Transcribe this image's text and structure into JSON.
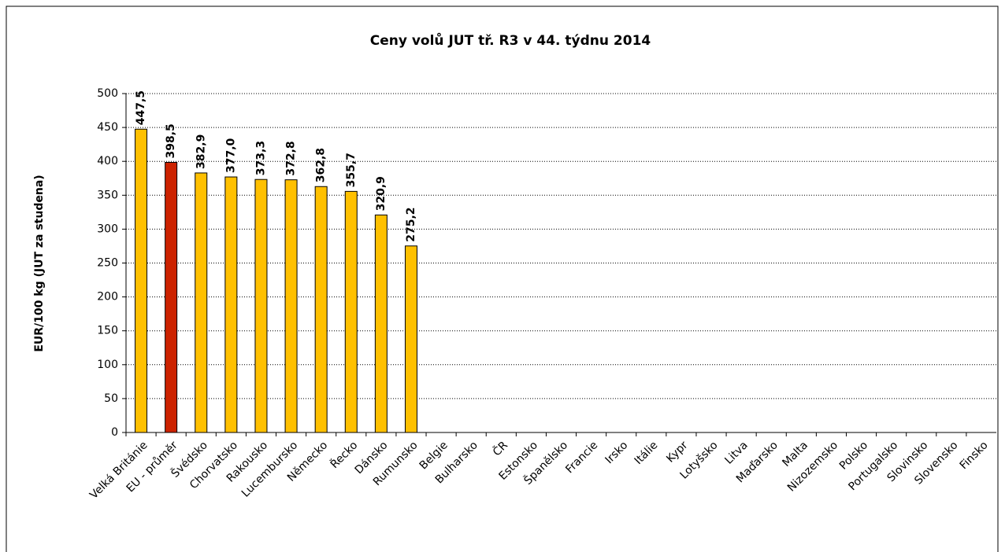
{
  "chart_data": {
    "type": "bar",
    "title": "Ceny volů JUT  tř. R3  v 44. týdnu 2014",
    "y_label": "EUR/100 kg (JUT za studena)",
    "categories": [
      "Velká Británie",
      "EU - průměr",
      "Švédsko",
      "Chorvatsko",
      "Rakousko",
      "Lucembursko",
      "Německo",
      "Řecko",
      "Dánsko",
      "Rumunsko",
      "Belgie",
      "Bulharsko",
      "ČR",
      "Estonsko",
      "Španělsko",
      "Francie",
      "Irsko",
      "Itálie",
      "Kypr",
      "Lotyšsko",
      "Litva",
      "Maďarsko",
      "Malta",
      "Nizozemsko",
      "Polsko",
      "Portugalsko",
      "Slovinsko",
      "Slovensko",
      "Finsko"
    ],
    "values": [
      447.5,
      398.5,
      382.9,
      377.0,
      373.3,
      372.8,
      362.8,
      355.7,
      320.9,
      275.2,
      null,
      null,
      null,
      null,
      null,
      null,
      null,
      null,
      null,
      null,
      null,
      null,
      null,
      null,
      null,
      null,
      null,
      null,
      null
    ],
    "value_labels": [
      "447,5",
      "398,5",
      "382,9",
      "377,0",
      "373,3",
      "372,8",
      "362,8",
      "355,7",
      "320,9",
      "275,2",
      null,
      null,
      null,
      null,
      null,
      null,
      null,
      null,
      null,
      null,
      null,
      null,
      null,
      null,
      null,
      null,
      null,
      null,
      null
    ],
    "colors": [
      "#FFC000",
      "#CC2200",
      "#FFC000",
      "#FFC000",
      "#FFC000",
      "#FFC000",
      "#FFC000",
      "#FFC000",
      "#FFC000",
      "#FFC000",
      null,
      null,
      null,
      null,
      null,
      null,
      null,
      null,
      null,
      null,
      null,
      null,
      null,
      null,
      null,
      null,
      null,
      null,
      null
    ],
    "ylim": [
      0,
      500
    ],
    "yticks": [
      0,
      50,
      100,
      150,
      200,
      250,
      300,
      350,
      400,
      450,
      500
    ],
    "grid": true
  }
}
